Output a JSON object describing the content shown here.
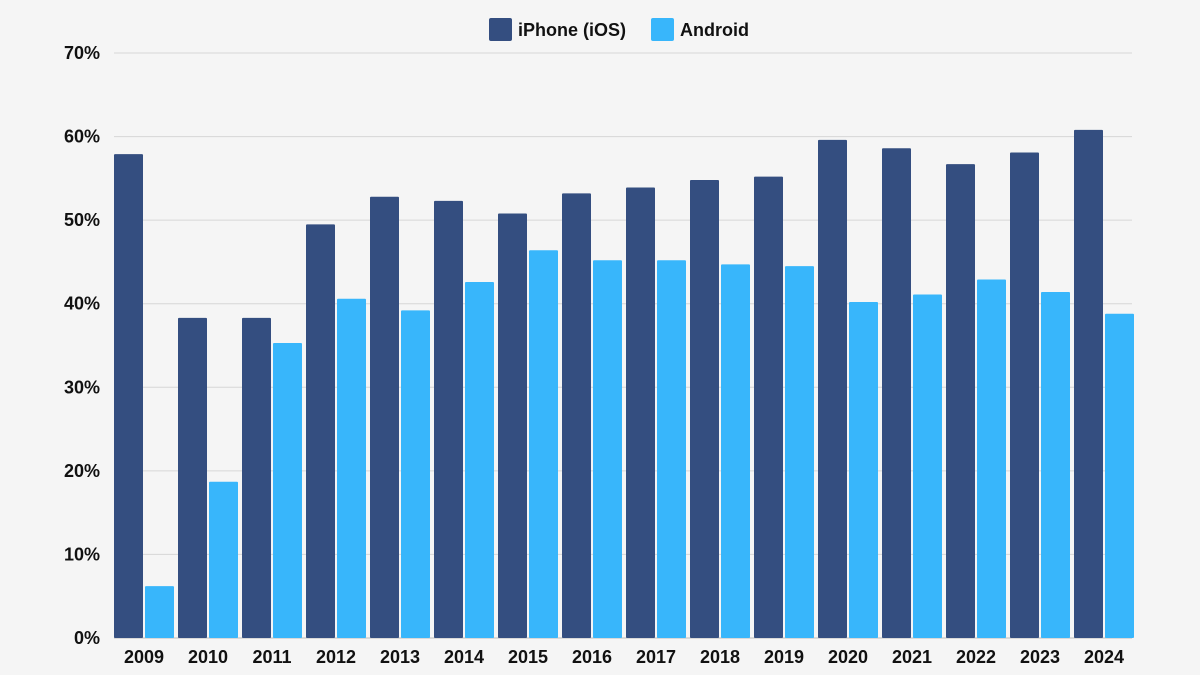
{
  "chart_data": {
    "type": "bar",
    "categories": [
      "2009",
      "2010",
      "2011",
      "2012",
      "2013",
      "2014",
      "2015",
      "2016",
      "2017",
      "2018",
      "2019",
      "2020",
      "2021",
      "2022",
      "2023",
      "2024"
    ],
    "series": [
      {
        "name": "iPhone (iOS)",
        "color": "#344e80",
        "values": [
          57.9,
          38.3,
          38.3,
          49.5,
          52.8,
          52.3,
          50.8,
          53.2,
          53.9,
          54.8,
          55.2,
          59.6,
          58.6,
          56.7,
          58.1,
          60.8
        ]
      },
      {
        "name": "Android",
        "color": "#38b6fb",
        "values": [
          6.2,
          18.7,
          35.3,
          40.6,
          39.2,
          42.6,
          46.4,
          45.2,
          45.2,
          44.7,
          44.5,
          40.2,
          41.1,
          42.9,
          41.4,
          38.8
        ]
      }
    ],
    "yticks": [
      "0%",
      "10%",
      "20%",
      "30%",
      "40%",
      "50%",
      "60%",
      "70%"
    ],
    "ylim": [
      0,
      70
    ],
    "xlabel": "",
    "ylabel": "",
    "legend_position": "top-center",
    "grid": true
  }
}
